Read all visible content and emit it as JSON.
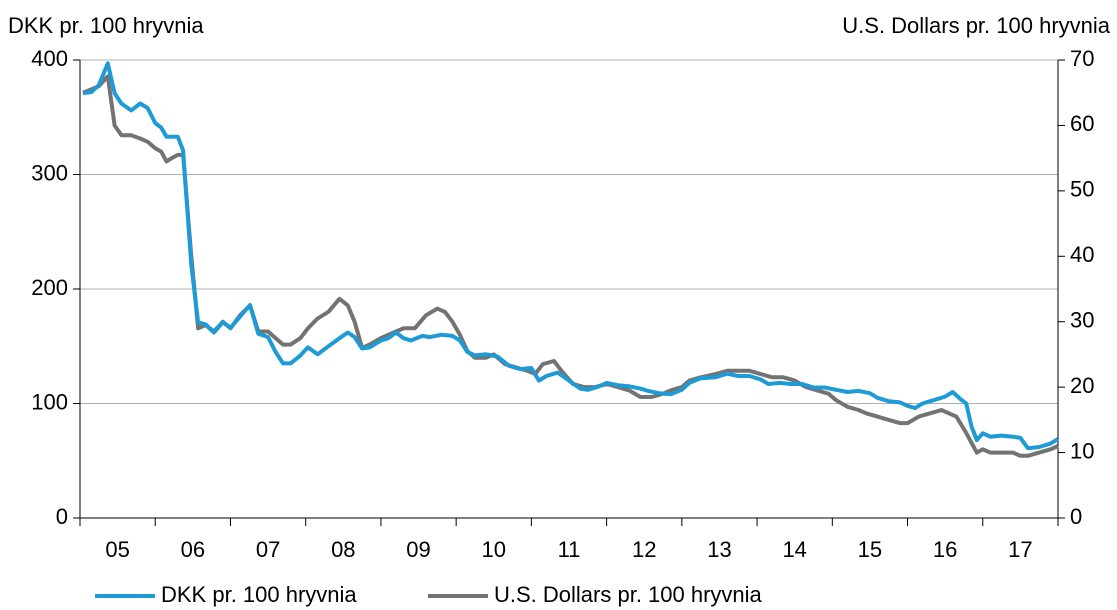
{
  "chart_data": {
    "type": "line",
    "y_label": "DKK pr. 100 hryvnia",
    "y2_label": "U.S. Dollars pr. 100 hryvnia",
    "xlim": [
      2005,
      2018
    ],
    "xticks": [
      2005,
      2006,
      2007,
      2008,
      2009,
      2010,
      2011,
      2012,
      2013,
      2014,
      2015,
      2016,
      2017,
      2018
    ],
    "x_labels": [
      "05",
      "06",
      "07",
      "08",
      "09",
      "10",
      "11",
      "12",
      "13",
      "14",
      "15",
      "16",
      "17"
    ],
    "ylim": [
      0,
      400
    ],
    "yticks": [
      0,
      100,
      200,
      300,
      400
    ],
    "y2lim": [
      0,
      70
    ],
    "y2ticks": [
      0,
      10,
      20,
      30,
      40,
      50,
      60,
      70
    ],
    "grid": true,
    "series": [
      {
        "name": "DKK pr. 100 hryvnia",
        "color": "#1e9bd7",
        "axis": "y",
        "x": [
          2005.04,
          2005.15,
          2005.25,
          2005.37,
          2005.46,
          2005.55,
          2005.68,
          2005.8,
          2005.9,
          2006.0,
          2006.08,
          2006.15,
          2006.3,
          2006.37,
          2006.48,
          2006.57,
          2006.67,
          2006.78,
          2006.9,
          2007.0,
          2007.13,
          2007.26,
          2007.37,
          2007.5,
          2007.6,
          2007.7,
          2007.8,
          2007.93,
          2008.03,
          2008.16,
          2008.3,
          2008.45,
          2008.56,
          2008.65,
          2008.75,
          2008.85,
          2009.0,
          2009.1,
          2009.2,
          2009.3,
          2009.4,
          2009.55,
          2009.65,
          2009.8,
          2009.95,
          2010.05,
          2010.15,
          2010.25,
          2010.4,
          2010.55,
          2010.7,
          2010.85,
          2011.0,
          2011.1,
          2011.2,
          2011.35,
          2011.5,
          2011.65,
          2011.75,
          2011.9,
          2012.0,
          2012.15,
          2012.3,
          2012.45,
          2012.55,
          2012.7,
          2012.85,
          2013.0,
          2013.1,
          2013.25,
          2013.45,
          2013.6,
          2013.75,
          2013.9,
          2014.05,
          2014.15,
          2014.3,
          2014.45,
          2014.6,
          2014.75,
          2014.9,
          2015.05,
          2015.2,
          2015.35,
          2015.5,
          2015.6,
          2015.75,
          2015.9,
          2016.0,
          2016.1,
          2016.2,
          2016.35,
          2016.5,
          2016.6,
          2016.7,
          2016.78,
          2016.85,
          2016.92,
          2017.0,
          2017.1,
          2017.25,
          2017.4,
          2017.5,
          2017.6,
          2017.75,
          2017.9,
          2018.0
        ],
        "values": [
          371,
          372,
          378,
          397,
          371,
          362,
          356,
          362,
          358,
          345,
          341,
          333,
          333,
          321,
          221,
          171,
          169,
          162,
          171,
          166,
          176,
          186,
          161,
          158,
          145,
          135,
          135,
          142,
          149,
          143,
          150,
          157,
          162,
          158,
          148,
          149,
          155,
          157,
          162,
          157,
          155,
          159,
          158,
          160,
          159,
          155,
          145,
          142,
          143,
          141,
          133,
          130,
          131,
          120,
          124,
          127,
          120,
          113,
          112,
          115,
          118,
          116,
          115,
          113,
          111,
          109,
          108,
          112,
          118,
          122,
          123,
          126,
          124,
          124,
          121,
          117,
          118,
          117,
          117,
          114,
          114,
          112,
          110,
          111,
          109,
          105,
          102,
          101,
          98,
          96,
          100,
          103,
          106,
          110,
          104,
          100,
          80,
          68,
          74,
          71,
          72,
          71,
          70,
          61,
          62,
          65,
          69
        ]
      },
      {
        "name": "U.S. Dollars pr. 100 hryvnia",
        "color": "#737373",
        "axis": "y2",
        "x": [
          2005.04,
          2005.15,
          2005.25,
          2005.37,
          2005.46,
          2005.55,
          2005.68,
          2005.8,
          2005.9,
          2006.0,
          2006.08,
          2006.15,
          2006.22,
          2006.3,
          2006.37,
          2006.48,
          2006.57,
          2006.67,
          2006.78,
          2006.9,
          2007.0,
          2007.13,
          2007.26,
          2007.37,
          2007.5,
          2007.6,
          2007.7,
          2007.8,
          2007.93,
          2008.03,
          2008.16,
          2008.3,
          2008.45,
          2008.56,
          2008.65,
          2008.75,
          2008.85,
          2009.0,
          2009.1,
          2009.2,
          2009.3,
          2009.45,
          2009.6,
          2009.75,
          2009.85,
          2009.95,
          2010.05,
          2010.15,
          2010.25,
          2010.4,
          2010.5,
          2010.65,
          2010.8,
          2010.95,
          2011.05,
          2011.15,
          2011.3,
          2011.4,
          2011.55,
          2011.7,
          2011.85,
          2012.0,
          2012.15,
          2012.3,
          2012.45,
          2012.6,
          2012.75,
          2012.85,
          2013.0,
          2013.1,
          2013.25,
          2013.45,
          2013.6,
          2013.75,
          2013.9,
          2014.05,
          2014.2,
          2014.35,
          2014.5,
          2014.65,
          2014.8,
          2014.95,
          2015.05,
          2015.2,
          2015.35,
          2015.45,
          2015.6,
          2015.75,
          2015.9,
          2016.0,
          2016.15,
          2016.3,
          2016.45,
          2016.55,
          2016.65,
          2016.78,
          2016.85,
          2016.92,
          2017.0,
          2017.1,
          2017.25,
          2017.4,
          2017.5,
          2017.6,
          2017.75,
          2017.9,
          2018.0
        ],
        "values": [
          65,
          65.5,
          66,
          67.5,
          60,
          58.5,
          58.5,
          58,
          57.5,
          56.5,
          56,
          54.5,
          55,
          55.5,
          55.5,
          40,
          29,
          29.5,
          28.5,
          30,
          29,
          31,
          32.5,
          28.5,
          28.5,
          27.5,
          26.5,
          26.5,
          27.5,
          29,
          30.5,
          31.5,
          33.5,
          32.5,
          30,
          26,
          26.5,
          27.5,
          28,
          28.5,
          29,
          29,
          31,
          32,
          31.5,
          30,
          28,
          25.5,
          24.5,
          24.5,
          25,
          23.5,
          23,
          22.5,
          22,
          23.5,
          24,
          22.5,
          20.5,
          20,
          20,
          20.5,
          20,
          19.5,
          18.5,
          18.5,
          19,
          19.5,
          20,
          21,
          21.5,
          22,
          22.5,
          22.5,
          22.5,
          22,
          21.5,
          21.5,
          21,
          20,
          19.5,
          19,
          18,
          17,
          16.5,
          16,
          15.5,
          15,
          14.5,
          14.5,
          15.5,
          16,
          16.5,
          16,
          15.5,
          13,
          11.5,
          10,
          10.5,
          10,
          10,
          10,
          9.5,
          9.5,
          10,
          10.5,
          11
        ]
      }
    ]
  }
}
